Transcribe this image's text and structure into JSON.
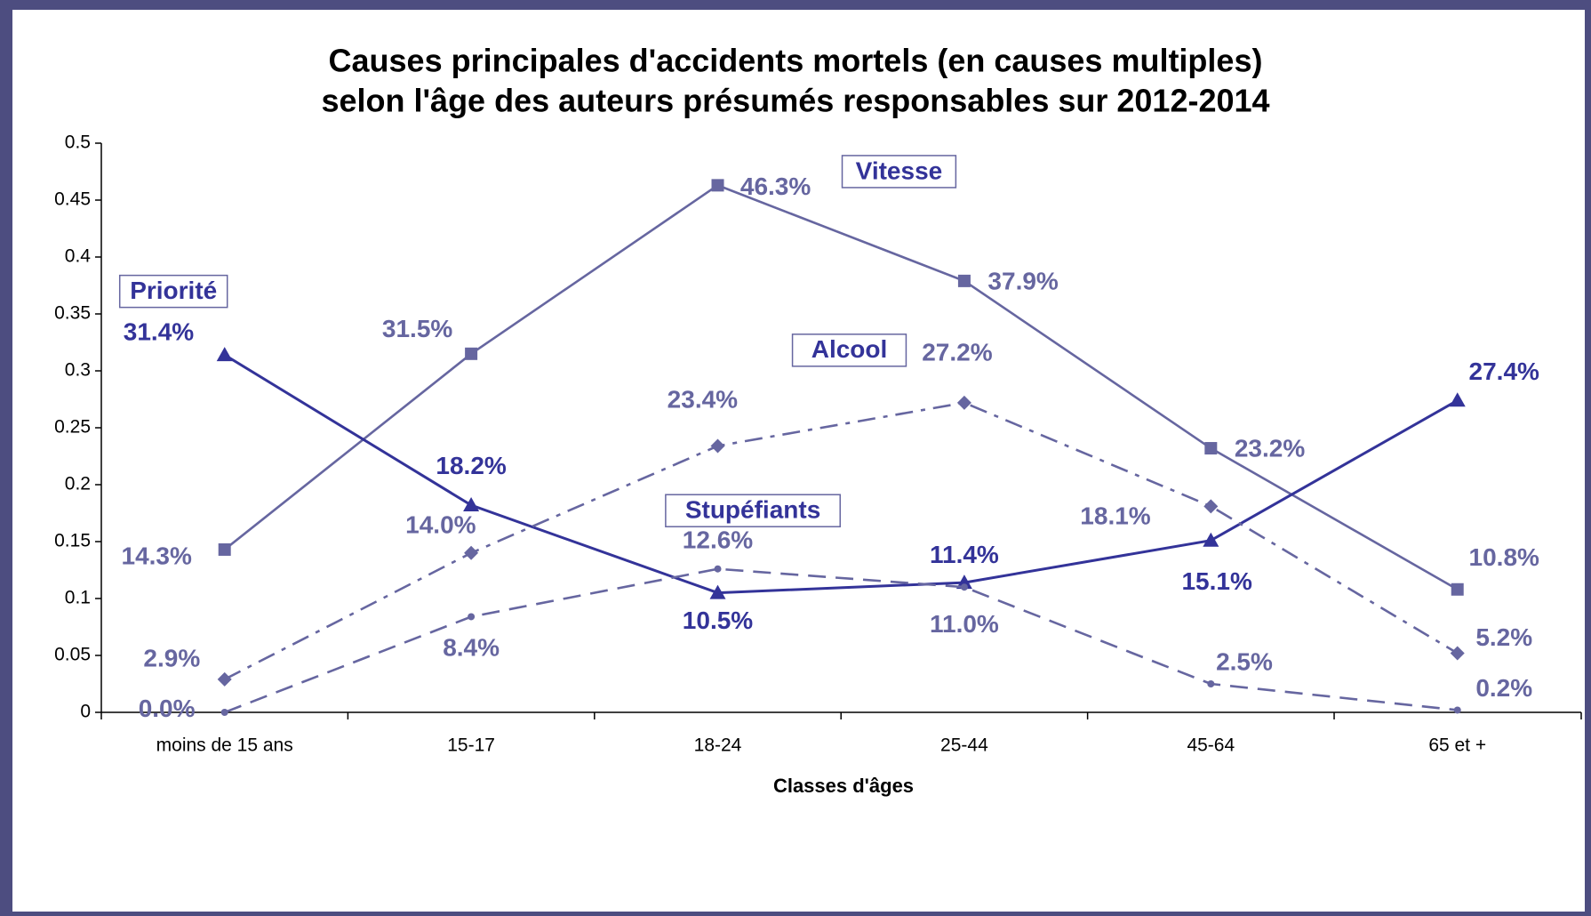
{
  "chart_data": {
    "type": "line",
    "title": [
      "Causes principales d'accidents mortels (en causes multiples)",
      "selon l'âge des auteurs présumés responsables sur 2012-2014"
    ],
    "x_label": "Classes d'âges",
    "categories": [
      "moins de 15 ans",
      "15-17",
      "18-24",
      "25-44",
      "45-64",
      "65 et +"
    ],
    "ylim": [
      0,
      0.5
    ],
    "yticks": [
      0,
      0.05,
      0.1,
      0.15,
      0.2,
      0.25,
      0.3,
      0.35,
      0.4,
      0.45,
      0.5
    ],
    "series": [
      {
        "name": "Vitesse",
        "color": "#6666a0",
        "marker": "square",
        "dash": "solid",
        "values": [
          0.143,
          0.315,
          0.463,
          0.379,
          0.232,
          0.108
        ],
        "value_labels": [
          "14.3%",
          "31.5%",
          "46.3%",
          "37.9%",
          "23.2%",
          "10.8%"
        ]
      },
      {
        "name": "Priorité",
        "color": "#333399",
        "marker": "triangle",
        "dash": "solid",
        "values": [
          0.314,
          0.182,
          0.105,
          0.114,
          0.151,
          0.274
        ],
        "value_labels": [
          "31.4%",
          "18.2%",
          "10.5%",
          "11.4%",
          "15.1%",
          "27.4%"
        ]
      },
      {
        "name": "Alcool",
        "color": "#6666a0",
        "marker": "diamond",
        "dash": "dashdot",
        "values": [
          0.029,
          0.14,
          0.234,
          0.272,
          0.181,
          0.052
        ],
        "value_labels": [
          "2.9%",
          "14.0%",
          "23.4%",
          "27.2%",
          "18.1%",
          "5.2%"
        ]
      },
      {
        "name": "Stupéfiants",
        "color": "#6666a0",
        "marker": "circle",
        "dash": "dashed",
        "values": [
          0,
          0.084,
          0.126,
          0.11,
          0.025,
          0.002
        ],
        "value_labels": [
          "0.0%",
          "8.4%",
          "12.6%",
          "11.0%",
          "2.5%",
          "0.2%"
        ]
      }
    ]
  }
}
